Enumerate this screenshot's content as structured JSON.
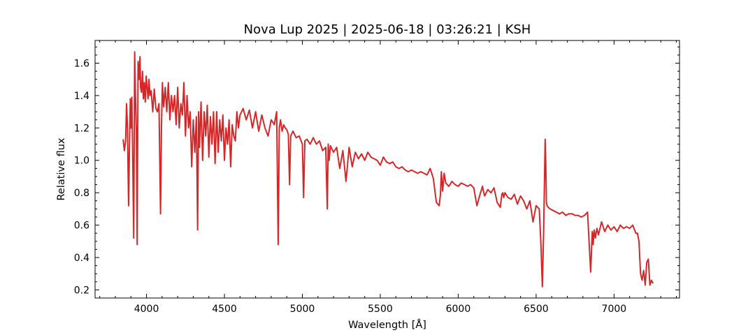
{
  "chart_data": {
    "type": "line",
    "title": "Nova Lup 2025 | 2025-06-18 | 03:26:21 | KSH",
    "xlabel": "Wavelength [Å]",
    "ylabel": "Relative flux",
    "xlim": [
      3670,
      7420
    ],
    "ylim": [
      0.15,
      1.74
    ],
    "xticks": [
      4000,
      4500,
      5000,
      5500,
      6000,
      6500,
      7000
    ],
    "yticks": [
      0.2,
      0.4,
      0.6,
      0.8,
      1.0,
      1.2,
      1.4,
      1.6
    ],
    "xtick_labels": [
      "4000",
      "4500",
      "5000",
      "5500",
      "6000",
      "6500",
      "7000"
    ],
    "ytick_labels": [
      "0.2",
      "0.4",
      "0.6",
      "0.8",
      "1.0",
      "1.2",
      "1.4",
      "1.6"
    ],
    "grid": false,
    "series": [
      {
        "color": "#d62728",
        "x": [
          3850,
          3858,
          3866,
          3872,
          3878,
          3885,
          3890,
          3896,
          3900,
          3906,
          3912,
          3918,
          3924,
          3929,
          3935,
          3940,
          3946,
          3952,
          3958,
          3962,
          3968,
          3974,
          3980,
          3986,
          3992,
          3998,
          4004,
          4010,
          4016,
          4022,
          4030,
          4040,
          4050,
          4060,
          4070,
          4080,
          4090,
          4096,
          4102,
          4110,
          4120,
          4130,
          4140,
          4150,
          4160,
          4170,
          4180,
          4190,
          4200,
          4210,
          4220,
          4230,
          4240,
          4250,
          4260,
          4270,
          4280,
          4290,
          4300,
          4310,
          4320,
          4328,
          4334,
          4340,
          4350,
          4360,
          4370,
          4380,
          4390,
          4400,
          4410,
          4420,
          4430,
          4440,
          4450,
          4460,
          4470,
          4480,
          4490,
          4500,
          4510,
          4520,
          4530,
          4540,
          4550,
          4560,
          4570,
          4580,
          4590,
          4600,
          4620,
          4640,
          4660,
          4680,
          4700,
          4720,
          4740,
          4760,
          4780,
          4800,
          4820,
          4835,
          4845,
          4852,
          4860,
          4870,
          4880,
          4890,
          4900,
          4910,
          4918,
          4925,
          4940,
          4960,
          4980,
          5000,
          5008,
          5016,
          5030,
          5050,
          5070,
          5090,
          5110,
          5130,
          5150,
          5160,
          5166,
          5172,
          5180,
          5200,
          5220,
          5240,
          5260,
          5280,
          5300,
          5320,
          5340,
          5360,
          5380,
          5400,
          5420,
          5440,
          5460,
          5480,
          5500,
          5520,
          5540,
          5560,
          5580,
          5600,
          5620,
          5640,
          5660,
          5680,
          5700,
          5720,
          5740,
          5760,
          5780,
          5800,
          5820,
          5840,
          5860,
          5878,
          5886,
          5892,
          5900,
          5910,
          5920,
          5940,
          5960,
          5980,
          6000,
          6020,
          6040,
          6060,
          6080,
          6100,
          6120,
          6140,
          6150,
          6156,
          6162,
          6170,
          6190,
          6210,
          6230,
          6250,
          6270,
          6280,
          6286,
          6292,
          6300,
          6320,
          6340,
          6360,
          6380,
          6400,
          6420,
          6440,
          6460,
          6480,
          6500,
          6520,
          6530,
          6540,
          6548,
          6554,
          6558,
          6562,
          6566,
          6570,
          6578,
          6590,
          6610,
          6630,
          6650,
          6670,
          6690,
          6710,
          6730,
          6750,
          6770,
          6790,
          6810,
          6830,
          6850,
          6860,
          6866,
          6872,
          6880,
          6890,
          6900,
          6920,
          6940,
          6960,
          6980,
          7000,
          7020,
          7040,
          7060,
          7080,
          7100,
          7120,
          7140,
          7150,
          7160,
          7170,
          7180,
          7190,
          7200,
          7210,
          7220,
          7230,
          7240,
          7250
        ],
        "y": [
          1.13,
          1.06,
          1.12,
          1.35,
          1.2,
          0.72,
          1.05,
          1.38,
          1.2,
          1.39,
          0.98,
          0.52,
          1.67,
          1.4,
          1.18,
          0.48,
          1.61,
          1.5,
          1.64,
          1.45,
          1.42,
          1.55,
          1.38,
          1.48,
          1.36,
          1.52,
          1.45,
          1.38,
          1.5,
          1.4,
          1.43,
          1.3,
          1.44,
          1.32,
          1.3,
          1.35,
          0.67,
          1.2,
          1.48,
          1.33,
          1.45,
          1.3,
          1.48,
          1.25,
          1.4,
          1.3,
          1.4,
          1.22,
          1.45,
          1.2,
          1.35,
          1.28,
          1.48,
          1.15,
          1.4,
          1.2,
          1.3,
          0.96,
          1.25,
          1.05,
          1.27,
          0.57,
          1.3,
          1.08,
          1.36,
          1.0,
          1.3,
          1.15,
          1.34,
          1.02,
          1.27,
          1.1,
          1.3,
          0.98,
          1.3,
          1.05,
          1.25,
          1.12,
          1.28,
          1.0,
          1.2,
          1.1,
          1.25,
          0.96,
          1.22,
          1.15,
          1.12,
          1.3,
          1.2,
          1.28,
          1.32,
          1.25,
          1.31,
          1.2,
          1.3,
          1.18,
          1.28,
          1.2,
          1.15,
          1.25,
          1.22,
          1.3,
          0.48,
          1.2,
          1.25,
          1.18,
          1.22,
          1.2,
          1.19,
          1.16,
          0.85,
          1.15,
          1.18,
          1.14,
          1.15,
          1.1,
          0.77,
          1.12,
          1.13,
          1.1,
          1.14,
          1.1,
          1.12,
          1.06,
          1.08,
          0.7,
          1.1,
          1.0,
          1.09,
          1.05,
          1.08,
          0.95,
          1.06,
          0.87,
          1.08,
          0.96,
          1.05,
          1.01,
          1.04,
          1.0,
          1.05,
          1.02,
          1.01,
          1.0,
          0.97,
          1.02,
          0.99,
          0.98,
          0.99,
          0.96,
          0.95,
          0.96,
          0.94,
          0.93,
          0.94,
          0.93,
          0.92,
          0.93,
          0.92,
          0.91,
          0.95,
          0.89,
          0.74,
          0.72,
          0.79,
          0.93,
          0.81,
          0.92,
          0.86,
          0.84,
          0.87,
          0.85,
          0.84,
          0.86,
          0.85,
          0.84,
          0.85,
          0.83,
          0.72,
          0.79,
          0.82,
          0.84,
          0.81,
          0.78,
          0.82,
          0.8,
          0.83,
          0.74,
          0.71,
          0.79,
          0.8,
          0.77,
          0.8,
          0.77,
          0.76,
          0.79,
          0.73,
          0.78,
          0.75,
          0.7,
          0.75,
          0.62,
          0.72,
          0.7,
          0.5,
          0.22,
          0.55,
          0.9,
          1.13,
          0.98,
          0.74,
          0.72,
          0.71,
          0.7,
          0.69,
          0.68,
          0.67,
          0.68,
          0.66,
          0.67,
          0.67,
          0.66,
          0.66,
          0.65,
          0.66,
          0.68,
          0.31,
          0.56,
          0.48,
          0.57,
          0.52,
          0.58,
          0.54,
          0.62,
          0.56,
          0.6,
          0.57,
          0.59,
          0.56,
          0.6,
          0.58,
          0.59,
          0.58,
          0.6,
          0.55,
          0.55,
          0.5,
          0.3,
          0.26,
          0.32,
          0.23,
          0.37,
          0.39,
          0.23,
          0.26,
          0.24
        ]
      }
    ]
  }
}
